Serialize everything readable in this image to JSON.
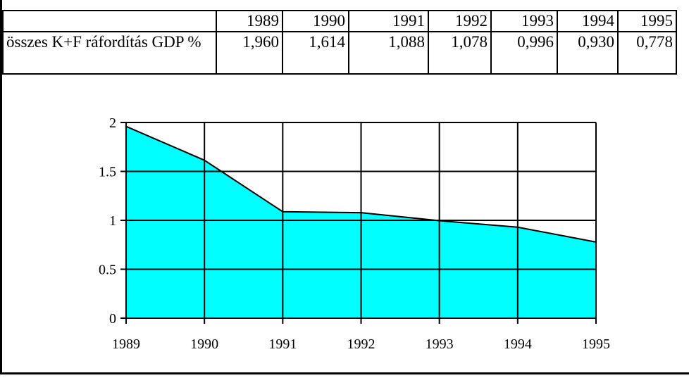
{
  "table": {
    "years": [
      "1989",
      "1990",
      "1991",
      "1992",
      "1993",
      "1994",
      "1995"
    ],
    "row_label": "összes K+F ráfordítás GDP %",
    "values": [
      "1,960",
      "1,614",
      "1,088",
      "1,078",
      "0,996",
      "0,930",
      "0,778"
    ]
  },
  "chart_data": {
    "type": "area",
    "categories": [
      "1989",
      "1990",
      "1991",
      "1992",
      "1993",
      "1994",
      "1995"
    ],
    "series": [
      {
        "values": [
          1.96,
          1.614,
          1.088,
          1.078,
          0.996,
          0.93,
          0.778
        ]
      }
    ],
    "title": "",
    "xlabel": "",
    "ylabel": "",
    "ylim": [
      0,
      2
    ],
    "yticks": [
      "0",
      "0.5",
      "1",
      "1.5",
      "2"
    ],
    "grid": true,
    "fill_color": "#00ffff",
    "line_color": "#000000"
  }
}
